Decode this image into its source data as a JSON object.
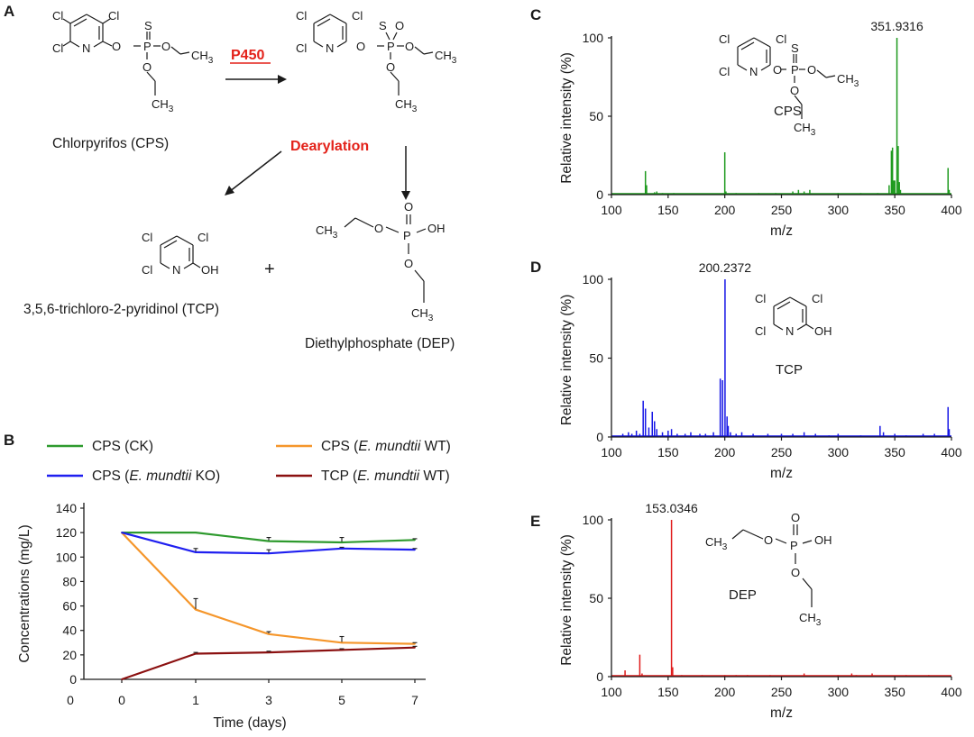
{
  "panels": {
    "a": "A",
    "b": "B",
    "c": "C",
    "d": "D",
    "e": "E"
  },
  "pathway": {
    "enzyme": "P450",
    "reaction": "Dearylation",
    "cps_name": "Chlorpyrifos (CPS)",
    "tcp_name": "3,5,6-trichloro-2-pyridinol (TCP)",
    "dep_name": "Diethylphosphate (DEP)",
    "plus": "+",
    "atoms": {
      "cl": "Cl",
      "n": "N",
      "o": "O",
      "s": "S",
      "p": "P",
      "oh": "OH",
      "ch3": "CH",
      "sub3": "3"
    }
  },
  "colors": {
    "ck": "#2e9a2e",
    "wt": "#f5962b",
    "ko": "#1f1ff0",
    "tcp": "#8b1010",
    "ms_c": "#1e9a1e",
    "ms_d": "#1616e6",
    "ms_e": "#e01a1a",
    "accent": "#e32119"
  },
  "chart_data": [
    {
      "id": "B",
      "type": "line",
      "title": "",
      "xlabel": "Time (days)",
      "ylabel": "Concentrations (mg/L)",
      "categories": [
        "0",
        "1",
        "3",
        "5",
        "7"
      ],
      "extra_x_tick": "0",
      "ylim": [
        0,
        140
      ],
      "yticks": [
        "0",
        "20",
        "40",
        "60",
        "80",
        "100",
        "120",
        "140"
      ],
      "legend_position": "top",
      "series": [
        {
          "name_pre": "CPS (CK)",
          "name_italic": "",
          "name_post": "",
          "color_key": "ck",
          "values": [
            120,
            120,
            113,
            112,
            114
          ],
          "errors": [
            0,
            0,
            3,
            4,
            1
          ]
        },
        {
          "name_pre": "CPS (",
          "name_italic": "E. mundtii",
          "name_post": " WT)",
          "color_key": "wt",
          "values": [
            120,
            57,
            37,
            30,
            29
          ],
          "errors": [
            0,
            9,
            2,
            5,
            1
          ]
        },
        {
          "name_pre": "CPS (",
          "name_italic": "E. mundtii",
          "name_post": " KO)",
          "color_key": "ko",
          "values": [
            120,
            104,
            103,
            107,
            106
          ],
          "errors": [
            0,
            3,
            3,
            1,
            1
          ]
        },
        {
          "name_pre": "TCP (",
          "name_italic": "E. mundtii",
          "name_post": " WT)",
          "color_key": "tcp",
          "values": [
            0,
            21,
            22,
            24,
            26
          ],
          "errors": [
            0,
            1,
            1,
            1,
            1
          ]
        }
      ]
    },
    {
      "id": "C",
      "type": "bar",
      "xlabel": "m/z",
      "ylabel": "Relative intensity (%)",
      "xlim": [
        100,
        400
      ],
      "ylim": [
        0,
        100
      ],
      "xticks": [
        "100",
        "150",
        "200",
        "250",
        "300",
        "350",
        "400"
      ],
      "yticks": [
        "0",
        "50",
        "100"
      ],
      "peak_label": "351.9316",
      "compound": "CPS",
      "color_key": "ms_c",
      "peaks": [
        [
          130,
          15
        ],
        [
          131,
          6
        ],
        [
          138,
          1.5
        ],
        [
          140,
          2
        ],
        [
          145,
          1
        ],
        [
          155,
          1
        ],
        [
          200,
          27
        ],
        [
          201,
          2
        ],
        [
          210,
          1
        ],
        [
          230,
          1
        ],
        [
          245,
          1
        ],
        [
          260,
          2
        ],
        [
          265,
          3
        ],
        [
          270,
          2
        ],
        [
          275,
          3
        ],
        [
          300,
          1
        ],
        [
          320,
          1
        ],
        [
          335,
          1
        ],
        [
          345,
          6
        ],
        [
          347,
          28
        ],
        [
          348,
          30
        ],
        [
          349,
          9
        ],
        [
          350,
          9
        ],
        [
          351.9,
          100
        ],
        [
          353,
          31
        ],
        [
          354,
          8
        ],
        [
          355,
          3
        ],
        [
          397,
          17
        ],
        [
          398,
          3
        ]
      ]
    },
    {
      "id": "D",
      "type": "bar",
      "xlabel": "m/z",
      "ylabel": "Relative intensity (%)",
      "xlim": [
        100,
        400
      ],
      "ylim": [
        0,
        100
      ],
      "xticks": [
        "100",
        "150",
        "200",
        "250",
        "300",
        "350",
        "400"
      ],
      "yticks": [
        "0",
        "50",
        "100"
      ],
      "peak_label": "200.2372",
      "compound": "TCP",
      "color_key": "ms_d",
      "peaks": [
        [
          110,
          2
        ],
        [
          115,
          3
        ],
        [
          118,
          2
        ],
        [
          122,
          4
        ],
        [
          125,
          2
        ],
        [
          128,
          23
        ],
        [
          130,
          18
        ],
        [
          133,
          6
        ],
        [
          136,
          16
        ],
        [
          138,
          10
        ],
        [
          140,
          5
        ],
        [
          145,
          3
        ],
        [
          150,
          4
        ],
        [
          153,
          5
        ],
        [
          158,
          2
        ],
        [
          165,
          2
        ],
        [
          170,
          3
        ],
        [
          178,
          2
        ],
        [
          183,
          2
        ],
        [
          190,
          3
        ],
        [
          196,
          37
        ],
        [
          198,
          36
        ],
        [
          200.2,
          100
        ],
        [
          202,
          13
        ],
        [
          203,
          7
        ],
        [
          205,
          3
        ],
        [
          210,
          2
        ],
        [
          215,
          3
        ],
        [
          225,
          2
        ],
        [
          238,
          2
        ],
        [
          250,
          2
        ],
        [
          260,
          2
        ],
        [
          270,
          3
        ],
        [
          280,
          2
        ],
        [
          292,
          1
        ],
        [
          300,
          2
        ],
        [
          320,
          1
        ],
        [
          337,
          7
        ],
        [
          340,
          3
        ],
        [
          350,
          2
        ],
        [
          360,
          1
        ],
        [
          375,
          2
        ],
        [
          385,
          2
        ],
        [
          397,
          19
        ],
        [
          398,
          5
        ]
      ]
    },
    {
      "id": "E",
      "type": "bar",
      "xlabel": "m/z",
      "ylabel": "Relative intensity (%)",
      "xlim": [
        100,
        400
      ],
      "ylim": [
        0,
        100
      ],
      "xticks": [
        "100",
        "150",
        "200",
        "250",
        "300",
        "350",
        "400"
      ],
      "yticks": [
        "0",
        "50",
        "100"
      ],
      "peak_label": "153.0346",
      "compound": "DEP",
      "color_key": "ms_e",
      "peaks": [
        [
          112,
          4
        ],
        [
          125,
          14
        ],
        [
          127,
          2
        ],
        [
          153,
          100
        ],
        [
          154,
          6
        ],
        [
          162,
          1
        ],
        [
          180,
          1
        ],
        [
          200,
          1
        ],
        [
          210,
          1
        ],
        [
          220,
          1
        ],
        [
          240,
          1
        ],
        [
          270,
          2
        ],
        [
          300,
          1
        ],
        [
          312,
          2
        ],
        [
          316,
          1
        ],
        [
          330,
          2
        ],
        [
          360,
          1
        ],
        [
          380,
          1
        ]
      ]
    }
  ]
}
